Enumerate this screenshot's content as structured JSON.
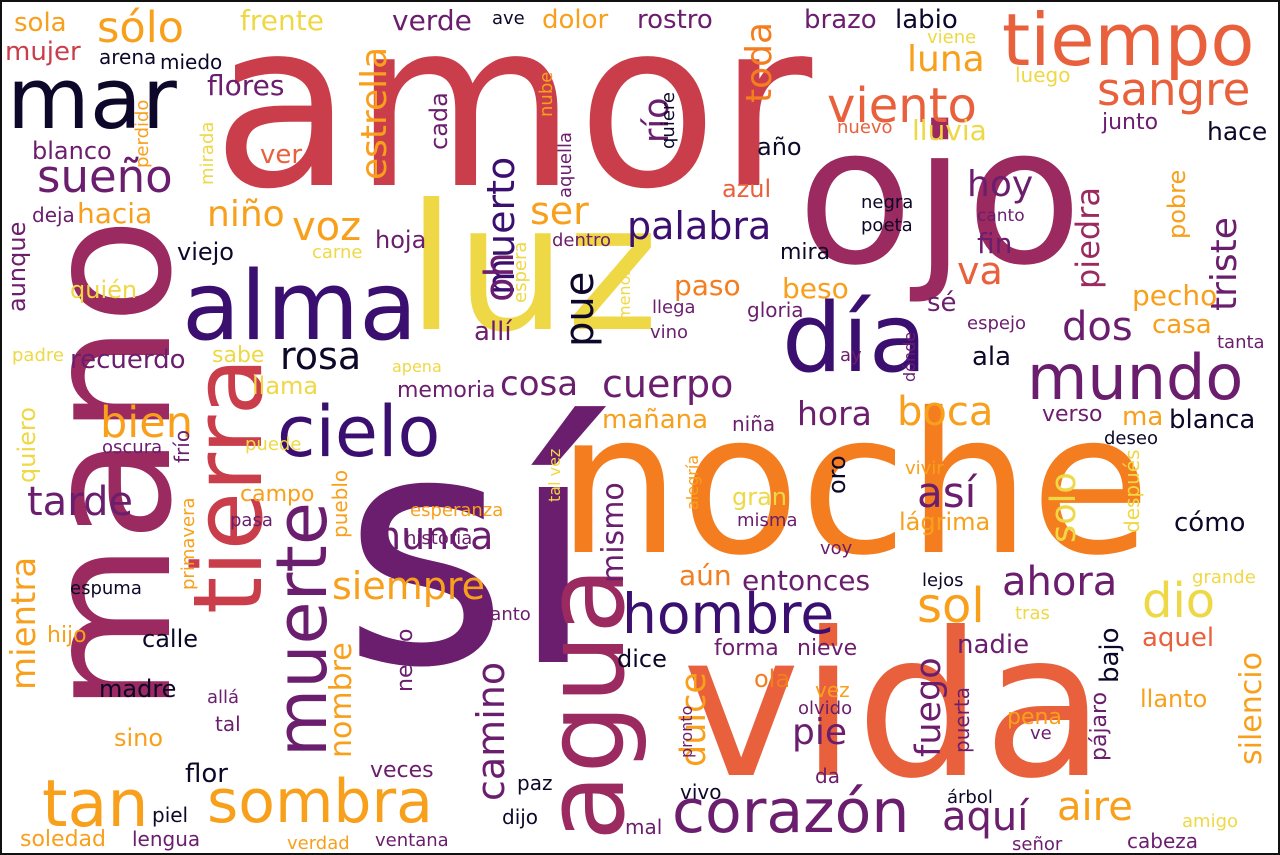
{
  "colors": {
    "c1": "#0d0829",
    "c2": "#3b0f70",
    "c3": "#6b1d6e",
    "c4": "#9a2a5f",
    "c5": "#c93e4a",
    "c6": "#e8613c",
    "c7": "#f47d1f",
    "c8": "#f8a01c",
    "c9": "#efd845",
    "c10": "#f0e050"
  },
  "words": [
    {
      "text": "amor",
      "color": "c5"
    },
    {
      "text": "sí",
      "color": "c3"
    },
    {
      "text": "noche",
      "color": "c7"
    },
    {
      "text": "ojo",
      "color": "c4"
    },
    {
      "text": "mano",
      "color": "c4"
    },
    {
      "text": "vida",
      "color": "c6"
    },
    {
      "text": "luz",
      "color": "c9"
    },
    {
      "text": "alma",
      "color": "c2"
    },
    {
      "text": "mar",
      "color": "c1"
    },
    {
      "text": "tiempo",
      "color": "c6"
    },
    {
      "text": "día",
      "color": "c2"
    },
    {
      "text": "agua",
      "color": "c4"
    },
    {
      "text": "tierra",
      "color": "c5"
    },
    {
      "text": "cielo",
      "color": "c2"
    },
    {
      "text": "muerte",
      "color": "c3"
    },
    {
      "text": "sombra",
      "color": "c8"
    },
    {
      "text": "mundo",
      "color": "c3"
    },
    {
      "text": "hombre",
      "color": "c2"
    },
    {
      "text": "corazón",
      "color": "c3"
    },
    {
      "text": "tan",
      "color": "c8"
    },
    {
      "text": "viento",
      "color": "c6"
    },
    {
      "text": "sangre",
      "color": "c6"
    },
    {
      "text": "rosa",
      "color": "c1"
    },
    {
      "text": "siempre",
      "color": "c8"
    },
    {
      "text": "sueño",
      "color": "c3"
    },
    {
      "text": "sólo",
      "color": "c8"
    },
    {
      "text": "estrella",
      "color": "c8"
    },
    {
      "text": "luna",
      "color": "c8"
    },
    {
      "text": "palabra",
      "color": "c2"
    },
    {
      "text": "muerto",
      "color": "c2"
    },
    {
      "text": "toda",
      "color": "c7"
    },
    {
      "text": "cosa",
      "color": "c3"
    },
    {
      "text": "cuerpo",
      "color": "c3"
    },
    {
      "text": "nunca",
      "color": "c3"
    },
    {
      "text": "dio",
      "color": "c9"
    },
    {
      "text": "piedra",
      "color": "c4"
    },
    {
      "text": "triste",
      "color": "c3"
    },
    {
      "text": "silencio",
      "color": "c8"
    },
    {
      "text": "camino",
      "color": "c3"
    },
    {
      "text": "mientra",
      "color": "c8"
    },
    {
      "text": "dulce",
      "color": "c8"
    },
    {
      "text": "aire",
      "color": "c8"
    },
    {
      "text": "aquí",
      "color": "c3"
    },
    {
      "text": "sol",
      "color": "c8"
    },
    {
      "text": "ahora",
      "color": "c3"
    },
    {
      "text": "fuego",
      "color": "c3"
    },
    {
      "text": "solo",
      "color": "c9"
    },
    {
      "text": "así",
      "color": "c3"
    },
    {
      "text": "boca",
      "color": "c8"
    },
    {
      "text": "hora",
      "color": "c3"
    },
    {
      "text": "tarde",
      "color": "c3"
    },
    {
      "text": "bien",
      "color": "c8"
    },
    {
      "text": "voz",
      "color": "c8"
    },
    {
      "text": "niño",
      "color": "c8"
    },
    {
      "text": "ser",
      "color": "c8"
    },
    {
      "text": "río",
      "color": "c3"
    },
    {
      "text": "hoy",
      "color": "c3"
    },
    {
      "text": "va",
      "color": "c6"
    },
    {
      "text": "dos",
      "color": "c3"
    },
    {
      "text": "pie",
      "color": "c3"
    },
    {
      "text": "mismo",
      "color": "c3"
    },
    {
      "text": "nombre",
      "color": "c8"
    },
    {
      "text": "oh",
      "color": "c3"
    },
    {
      "text": "pue",
      "color": "c1"
    },
    {
      "text": "hacia",
      "color": "c8"
    },
    {
      "text": "flores",
      "color": "c3"
    },
    {
      "text": "entonces",
      "color": "c3"
    },
    {
      "text": "aún",
      "color": "c7"
    },
    {
      "text": "recuerdo",
      "color": "c3"
    },
    {
      "text": "allí",
      "color": "c3"
    },
    {
      "text": "beso",
      "color": "c8"
    },
    {
      "text": "paso",
      "color": "c7"
    },
    {
      "text": "pecho",
      "color": "c8"
    },
    {
      "text": "casa",
      "color": "c8"
    },
    {
      "text": "sé",
      "color": "c3"
    },
    {
      "text": "ala",
      "color": "c1"
    },
    {
      "text": "fin",
      "color": "c3"
    },
    {
      "text": "hoja",
      "color": "c3"
    },
    {
      "text": "viejo",
      "color": "c1"
    },
    {
      "text": "mira",
      "color": "c1"
    },
    {
      "text": "dentro",
      "color": "c3"
    },
    {
      "text": "cada",
      "color": "c3"
    },
    {
      "text": "blanco",
      "color": "c3"
    },
    {
      "text": "ver",
      "color": "c6"
    },
    {
      "text": "año",
      "color": "c1"
    },
    {
      "text": "azul",
      "color": "c6"
    },
    {
      "text": "nuevo",
      "color": "c6"
    },
    {
      "text": "lluvia",
      "color": "c9"
    },
    {
      "text": "hace",
      "color": "c1"
    },
    {
      "text": "junto",
      "color": "c3"
    },
    {
      "text": "luego",
      "color": "c9"
    },
    {
      "text": "viene",
      "color": "c9"
    },
    {
      "text": "labio",
      "color": "c1"
    },
    {
      "text": "brazo",
      "color": "c3"
    },
    {
      "text": "rostro",
      "color": "c3"
    },
    {
      "text": "dolor",
      "color": "c8"
    },
    {
      "text": "ave",
      "color": "c1"
    },
    {
      "text": "verde",
      "color": "c3"
    },
    {
      "text": "frente",
      "color": "c9"
    },
    {
      "text": "sola",
      "color": "c8"
    },
    {
      "text": "mujer",
      "color": "c5"
    },
    {
      "text": "arena",
      "color": "c1"
    },
    {
      "text": "miedo",
      "color": "c1"
    },
    {
      "text": "perdido",
      "color": "c8"
    },
    {
      "text": "mirada",
      "color": "c9"
    },
    {
      "text": "nube",
      "color": "c8"
    },
    {
      "text": "aquella",
      "color": "c3"
    },
    {
      "text": "quiere",
      "color": "c1"
    },
    {
      "text": "deja",
      "color": "c3"
    },
    {
      "text": "aunque",
      "color": "c3"
    },
    {
      "text": "carne",
      "color": "c9"
    },
    {
      "text": "quién",
      "color": "c9"
    },
    {
      "text": "espera",
      "color": "c9"
    },
    {
      "text": "menos",
      "color": "c9"
    },
    {
      "text": "llega",
      "color": "c3"
    },
    {
      "text": "vino",
      "color": "c3"
    },
    {
      "text": "gloria",
      "color": "c3"
    },
    {
      "text": "espejo",
      "color": "c3"
    },
    {
      "text": "negra",
      "color": "c1"
    },
    {
      "text": "poeta",
      "color": "c1"
    },
    {
      "text": "canto",
      "color": "c3"
    },
    {
      "text": "pobre",
      "color": "c8"
    },
    {
      "text": "padre",
      "color": "c9"
    },
    {
      "text": "sabe",
      "color": "c9"
    },
    {
      "text": "apena",
      "color": "c9"
    },
    {
      "text": "ay",
      "color": "c3"
    },
    {
      "text": "dónde",
      "color": "c3"
    },
    {
      "text": "tanta",
      "color": "c3"
    },
    {
      "text": "llama",
      "color": "c9"
    },
    {
      "text": "memoria",
      "color": "c3"
    },
    {
      "text": "mañana",
      "color": "c8"
    },
    {
      "text": "niña",
      "color": "c3"
    },
    {
      "text": "verso",
      "color": "c3"
    },
    {
      "text": "ma",
      "color": "c8"
    },
    {
      "text": "blanca",
      "color": "c1"
    },
    {
      "text": "deseo",
      "color": "c1"
    },
    {
      "text": "quiero",
      "color": "c9"
    },
    {
      "text": "oscura",
      "color": "c3"
    },
    {
      "text": "frío",
      "color": "c3"
    },
    {
      "text": "puede",
      "color": "c9"
    },
    {
      "text": "campo",
      "color": "c8"
    },
    {
      "text": "pueblo",
      "color": "c8"
    },
    {
      "text": "alegría",
      "color": "c8"
    },
    {
      "text": "vivir",
      "color": "c8"
    },
    {
      "text": "después",
      "color": "c9"
    },
    {
      "text": "oro",
      "color": "c1"
    },
    {
      "text": "gran",
      "color": "c9"
    },
    {
      "text": "misma",
      "color": "c3"
    },
    {
      "text": "lágrima",
      "color": "c8"
    },
    {
      "text": "cómo",
      "color": "c1"
    },
    {
      "text": "pasa",
      "color": "c3"
    },
    {
      "text": "esperanza",
      "color": "c8"
    },
    {
      "text": "tal vez",
      "color": "c9"
    },
    {
      "text": "primavera",
      "color": "c8"
    },
    {
      "text": "historia",
      "color": "c3"
    },
    {
      "text": "voy",
      "color": "c3"
    },
    {
      "text": "lejos",
      "color": "c1"
    },
    {
      "text": "grande",
      "color": "c9"
    },
    {
      "text": "espuma",
      "color": "c1"
    },
    {
      "text": "hijo",
      "color": "c8"
    },
    {
      "text": "cuanto",
      "color": "c3"
    },
    {
      "text": "tras",
      "color": "c9"
    },
    {
      "text": "calle",
      "color": "c1"
    },
    {
      "text": "nadie",
      "color": "c3"
    },
    {
      "text": "aquel",
      "color": "c6"
    },
    {
      "text": "negro",
      "color": "c3"
    },
    {
      "text": "forma",
      "color": "c3"
    },
    {
      "text": "nieve",
      "color": "c3"
    },
    {
      "text": "dice",
      "color": "c1"
    },
    {
      "text": "bajo",
      "color": "c1"
    },
    {
      "text": "madre",
      "color": "c1"
    },
    {
      "text": "ola",
      "color": "c7"
    },
    {
      "text": "vez",
      "color": "c8"
    },
    {
      "text": "llanto",
      "color": "c8"
    },
    {
      "text": "allá",
      "color": "c3"
    },
    {
      "text": "tal",
      "color": "c3"
    },
    {
      "text": "sino",
      "color": "c8"
    },
    {
      "text": "olvido",
      "color": "c3"
    },
    {
      "text": "pronto",
      "color": "c3"
    },
    {
      "text": "pena",
      "color": "c8"
    },
    {
      "text": "ve",
      "color": "c3"
    },
    {
      "text": "pájaro",
      "color": "c3"
    },
    {
      "text": "flor",
      "color": "c1"
    },
    {
      "text": "veces",
      "color": "c3"
    },
    {
      "text": "paz",
      "color": "c1"
    },
    {
      "text": "da",
      "color": "c3"
    },
    {
      "text": "puerta",
      "color": "c3"
    },
    {
      "text": "vivo",
      "color": "c1"
    },
    {
      "text": "árbol",
      "color": "c1"
    },
    {
      "text": "piel",
      "color": "c1"
    },
    {
      "text": "dijo",
      "color": "c1"
    },
    {
      "text": "mal",
      "color": "c3"
    },
    {
      "text": "amigo",
      "color": "c9"
    },
    {
      "text": "soledad",
      "color": "c8"
    },
    {
      "text": "lengua",
      "color": "c3"
    },
    {
      "text": "verdad",
      "color": "c8"
    },
    {
      "text": "ventana",
      "color": "c3"
    },
    {
      "text": "señor",
      "color": "c3"
    },
    {
      "text": "cabeza",
      "color": "c3"
    }
  ]
}
